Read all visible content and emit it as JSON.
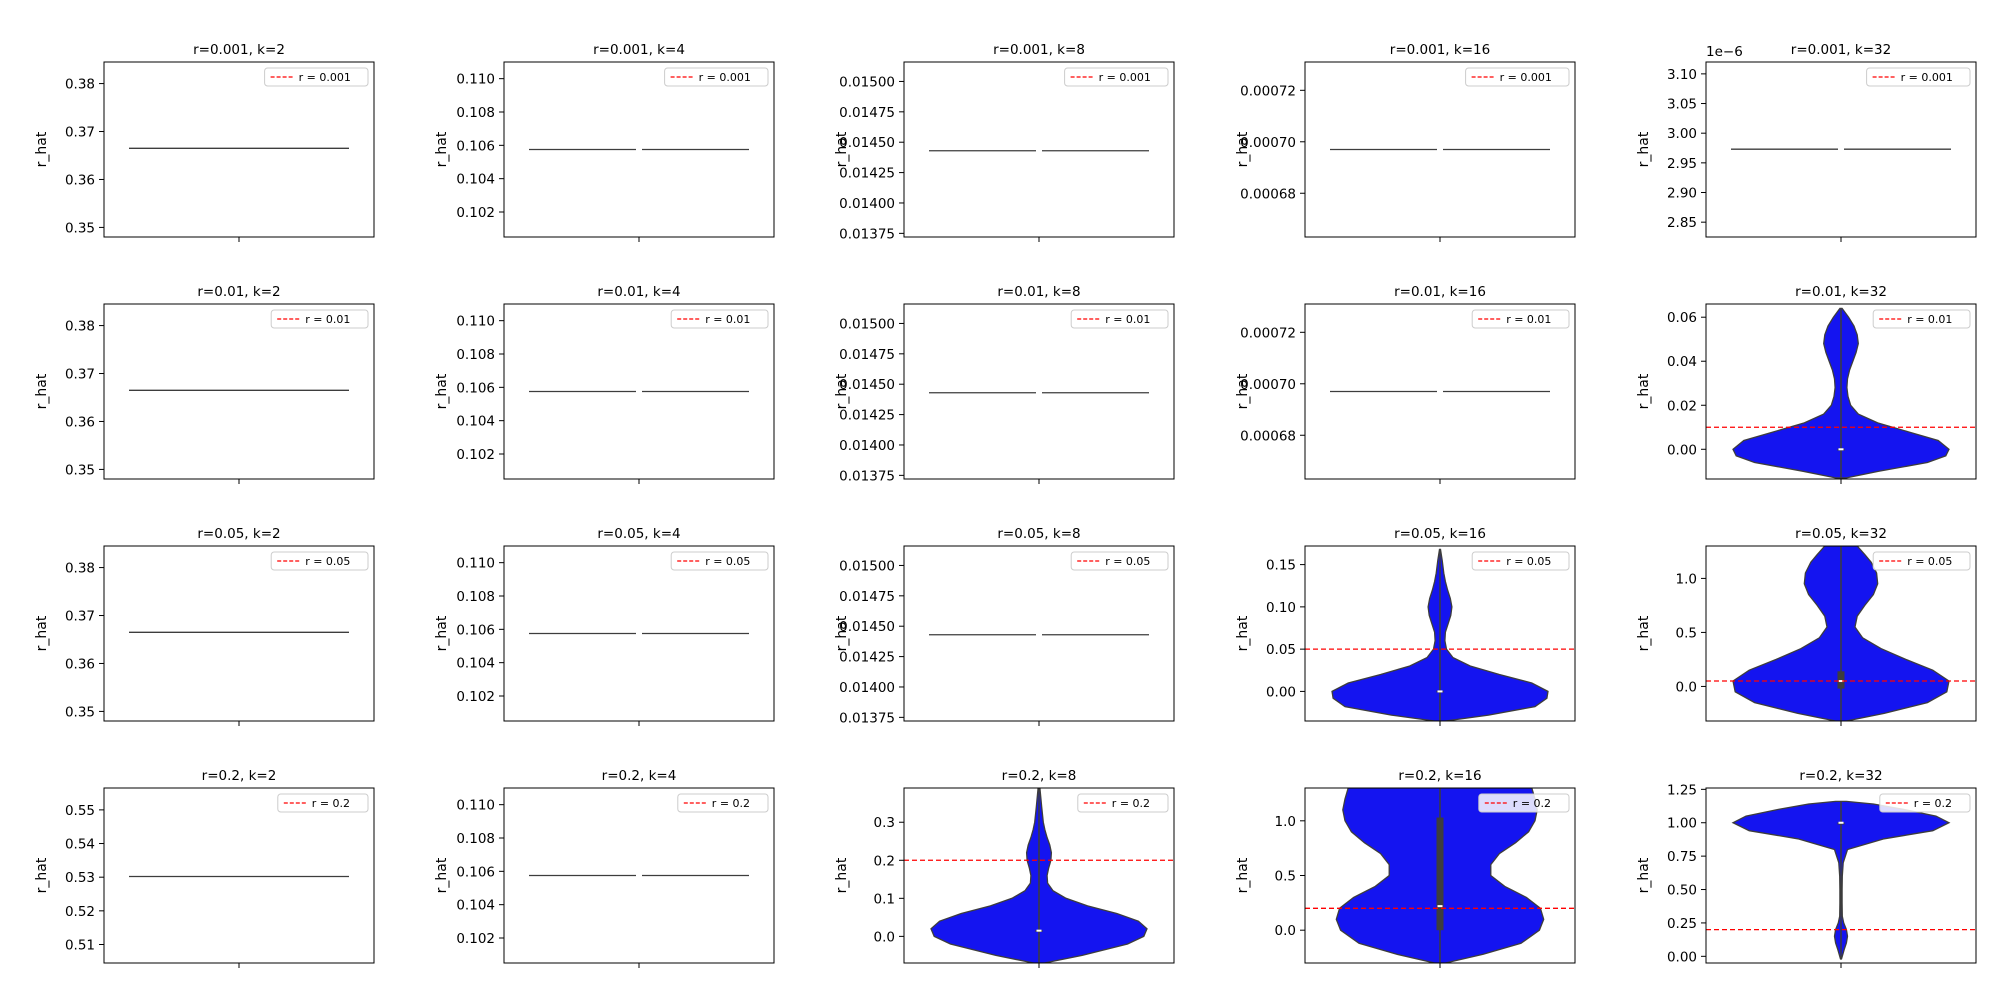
{
  "chart_data": [
    {
      "type": "violin",
      "title": "r=0.001, k=2",
      "ylabel": "r_hat",
      "legend": "r = 0.001",
      "legend_loc": "upper right",
      "ref_line": 0.001,
      "ylim": [
        0.348,
        0.3845
      ],
      "yticks": [
        "0.35",
        "0.36",
        "0.37",
        "0.38"
      ],
      "offset": "",
      "line_value": 0.3665,
      "line_style": "single"
    },
    {
      "type": "violin",
      "title": "r=0.001, k=4",
      "ylabel": "r_hat",
      "legend": "r = 0.001",
      "legend_loc": "upper right",
      "ref_line": 0.001,
      "ylim": [
        0.1005,
        0.111
      ],
      "yticks": [
        "0.102",
        "0.104",
        "0.106",
        "0.108",
        "0.110"
      ],
      "offset": "",
      "line_value": 0.10575,
      "line_style": "split"
    },
    {
      "type": "violin",
      "title": "r=0.001, k=8",
      "ylabel": "r_hat",
      "legend": "r = 0.001",
      "legend_loc": "upper right",
      "ref_line": 0.001,
      "ylim": [
        0.01372,
        0.01516
      ],
      "yticks": [
        "0.01375",
        "0.01400",
        "0.01425",
        "0.01450",
        "0.01475",
        "0.01500"
      ],
      "offset": "",
      "line_value": 0.01443,
      "line_style": "split"
    },
    {
      "type": "violin",
      "title": "r=0.001, k=16",
      "ylabel": "r_hat",
      "legend": "r = 0.001",
      "legend_loc": "upper right",
      "ref_line": 0.001,
      "ylim": [
        0.000663,
        0.000731
      ],
      "yticks": [
        "0.00068",
        "0.00070",
        "0.00072"
      ],
      "offset": "",
      "line_value": 0.000697,
      "line_style": "split"
    },
    {
      "type": "violin",
      "title": "r=0.001, k=32",
      "ylabel": "r_hat",
      "legend": "r = 0.001",
      "legend_loc": "upper right",
      "ref_line": 0.001,
      "ylim": [
        2.825,
        3.12
      ],
      "yticks": [
        "2.85",
        "2.90",
        "2.95",
        "3.00",
        "3.05",
        "3.10"
      ],
      "offset": "1e−6",
      "line_value": 2.973,
      "line_style": "split"
    },
    {
      "type": "violin",
      "title": "r=0.01, k=2",
      "ylabel": "r_hat",
      "legend": "r = 0.01",
      "legend_loc": "upper right",
      "ref_line": 0.01,
      "ylim": [
        0.348,
        0.3845
      ],
      "yticks": [
        "0.35",
        "0.36",
        "0.37",
        "0.38"
      ],
      "offset": "",
      "line_value": 0.3665,
      "line_style": "single"
    },
    {
      "type": "violin",
      "title": "r=0.01, k=4",
      "ylabel": "r_hat",
      "legend": "r = 0.01",
      "legend_loc": "upper right",
      "ref_line": 0.01,
      "ylim": [
        0.1005,
        0.111
      ],
      "yticks": [
        "0.102",
        "0.104",
        "0.106",
        "0.108",
        "0.110"
      ],
      "offset": "",
      "line_value": 0.10575,
      "line_style": "split"
    },
    {
      "type": "violin",
      "title": "r=0.01, k=8",
      "ylabel": "r_hat",
      "legend": "r = 0.01",
      "legend_loc": "upper right",
      "ref_line": 0.01,
      "ylim": [
        0.01372,
        0.01516
      ],
      "yticks": [
        "0.01375",
        "0.01400",
        "0.01425",
        "0.01450",
        "0.01475",
        "0.01500"
      ],
      "offset": "",
      "line_value": 0.01443,
      "line_style": "split"
    },
    {
      "type": "violin",
      "title": "r=0.01, k=16",
      "ylabel": "r_hat",
      "legend": "r = 0.01",
      "legend_loc": "upper right",
      "ref_line": 0.01,
      "ylim": [
        0.000663,
        0.000731
      ],
      "yticks": [
        "0.00068",
        "0.00070",
        "0.00072"
      ],
      "offset": "",
      "line_value": 0.000697,
      "line_style": "split"
    },
    {
      "type": "violin",
      "title": "r=0.01, k=32",
      "ylabel": "r_hat",
      "legend": "r = 0.01",
      "legend_loc": "upper right",
      "ref_line": 0.01,
      "ylim": [
        -0.0135,
        0.066
      ],
      "yticks": [
        "0.00",
        "0.02",
        "0.04",
        "0.06"
      ],
      "offset": "",
      "violin": {
        "min": -0.013,
        "max": 0.064,
        "profile": [
          [
            -0.013,
            0.05
          ],
          [
            -0.01,
            0.35
          ],
          [
            -0.006,
            0.8
          ],
          [
            -0.003,
            0.97
          ],
          [
            0.0,
            1.0
          ],
          [
            0.004,
            0.9
          ],
          [
            0.008,
            0.62
          ],
          [
            0.012,
            0.34
          ],
          [
            0.016,
            0.16
          ],
          [
            0.02,
            0.09
          ],
          [
            0.024,
            0.065
          ],
          [
            0.028,
            0.055
          ],
          [
            0.032,
            0.06
          ],
          [
            0.036,
            0.08
          ],
          [
            0.04,
            0.11
          ],
          [
            0.044,
            0.14
          ],
          [
            0.048,
            0.16
          ],
          [
            0.052,
            0.15
          ],
          [
            0.056,
            0.12
          ],
          [
            0.06,
            0.07
          ],
          [
            0.064,
            0.01
          ]
        ],
        "median": 0.0,
        "q1": -0.0003,
        "q3": 0.0003
      }
    },
    {
      "type": "violin",
      "title": "r=0.05, k=2",
      "ylabel": "r_hat",
      "legend": "r = 0.05",
      "legend_loc": "upper right",
      "ref_line": 0.05,
      "ylim": [
        0.348,
        0.3845
      ],
      "yticks": [
        "0.35",
        "0.36",
        "0.37",
        "0.38"
      ],
      "offset": "",
      "line_value": 0.3665,
      "line_style": "single"
    },
    {
      "type": "violin",
      "title": "r=0.05, k=4",
      "ylabel": "r_hat",
      "legend": "r = 0.05",
      "legend_loc": "upper right",
      "ref_line": 0.05,
      "ylim": [
        0.1005,
        0.111
      ],
      "yticks": [
        "0.102",
        "0.104",
        "0.106",
        "0.108",
        "0.110"
      ],
      "offset": "",
      "line_value": 0.10575,
      "line_style": "split"
    },
    {
      "type": "violin",
      "title": "r=0.05, k=8",
      "ylabel": "r_hat",
      "legend": "r = 0.05",
      "legend_loc": "upper right",
      "ref_line": 0.05,
      "ylim": [
        0.01372,
        0.01516
      ],
      "yticks": [
        "0.01375",
        "0.01400",
        "0.01425",
        "0.01450",
        "0.01475",
        "0.01500"
      ],
      "offset": "",
      "line_value": 0.01443,
      "line_style": "split"
    },
    {
      "type": "violin",
      "title": "r=0.05, k=16",
      "ylabel": "r_hat",
      "legend": "r = 0.05",
      "legend_loc": "upper right",
      "ref_line": 0.05,
      "ylim": [
        -0.035,
        0.172
      ],
      "yticks": [
        "0.00",
        "0.05",
        "0.10",
        "0.15"
      ],
      "offset": "",
      "violin": {
        "min": -0.035,
        "max": 0.168,
        "profile": [
          [
            -0.035,
            0.05
          ],
          [
            -0.028,
            0.45
          ],
          [
            -0.018,
            0.88
          ],
          [
            -0.008,
            0.99
          ],
          [
            0.0,
            1.0
          ],
          [
            0.01,
            0.85
          ],
          [
            0.02,
            0.55
          ],
          [
            0.03,
            0.28
          ],
          [
            0.04,
            0.12
          ],
          [
            0.05,
            0.06
          ],
          [
            0.06,
            0.045
          ],
          [
            0.07,
            0.05
          ],
          [
            0.08,
            0.075
          ],
          [
            0.09,
            0.1
          ],
          [
            0.1,
            0.11
          ],
          [
            0.11,
            0.095
          ],
          [
            0.12,
            0.07
          ],
          [
            0.13,
            0.05
          ],
          [
            0.14,
            0.035
          ],
          [
            0.155,
            0.02
          ],
          [
            0.168,
            0.005
          ]
        ],
        "median": 0.0,
        "q1": -0.001,
        "q3": 0.001
      }
    },
    {
      "type": "violin",
      "title": "r=0.05, k=32",
      "ylabel": "r_hat",
      "legend": "r = 0.05",
      "legend_loc": "upper right",
      "ref_line": 0.05,
      "ylim": [
        -0.32,
        1.3
      ],
      "yticks": [
        "0.0",
        "0.5",
        "1.0"
      ],
      "offset": "",
      "violin": {
        "min": -0.32,
        "max": 1.3,
        "profile": [
          [
            -0.32,
            0.05
          ],
          [
            -0.25,
            0.4
          ],
          [
            -0.15,
            0.8
          ],
          [
            -0.05,
            0.98
          ],
          [
            0.05,
            1.0
          ],
          [
            0.15,
            0.85
          ],
          [
            0.25,
            0.6
          ],
          [
            0.35,
            0.37
          ],
          [
            0.45,
            0.2
          ],
          [
            0.55,
            0.13
          ],
          [
            0.65,
            0.15
          ],
          [
            0.75,
            0.22
          ],
          [
            0.85,
            0.3
          ],
          [
            0.95,
            0.34
          ],
          [
            1.05,
            0.33
          ],
          [
            1.15,
            0.28
          ],
          [
            1.22,
            0.22
          ],
          [
            1.3,
            0.15
          ]
        ],
        "median": 0.05,
        "q1": -0.02,
        "q3": 0.14
      }
    },
    {
      "type": "violin",
      "title": "r=0.2, k=2",
      "ylabel": "r_hat",
      "legend": "r = 0.2",
      "legend_loc": "upper right",
      "ref_line": 0.2,
      "ylim": [
        0.5045,
        0.5565
      ],
      "yticks": [
        "0.51",
        "0.52",
        "0.53",
        "0.54",
        "0.55"
      ],
      "offset": "",
      "line_value": 0.5302,
      "line_style": "single"
    },
    {
      "type": "violin",
      "title": "r=0.2, k=4",
      "ylabel": "r_hat",
      "legend": "r = 0.2",
      "legend_loc": "upper right",
      "ref_line": 0.2,
      "ylim": [
        0.1005,
        0.111
      ],
      "yticks": [
        "0.102",
        "0.104",
        "0.106",
        "0.108",
        "0.110"
      ],
      "offset": "",
      "line_value": 0.10575,
      "line_style": "split"
    },
    {
      "type": "violin",
      "title": "r=0.2, k=8",
      "ylabel": "r_hat",
      "legend": "r = 0.2",
      "legend_loc": "upper right",
      "ref_line": 0.2,
      "ylim": [
        -0.07,
        0.39
      ],
      "yticks": [
        "0.0",
        "0.1",
        "0.2",
        "0.3"
      ],
      "offset": "",
      "violin": {
        "min": -0.07,
        "max": 0.39,
        "profile": [
          [
            -0.07,
            0.05
          ],
          [
            -0.05,
            0.4
          ],
          [
            -0.02,
            0.82
          ],
          [
            0.0,
            0.97
          ],
          [
            0.02,
            1.0
          ],
          [
            0.04,
            0.92
          ],
          [
            0.06,
            0.72
          ],
          [
            0.08,
            0.45
          ],
          [
            0.1,
            0.25
          ],
          [
            0.12,
            0.13
          ],
          [
            0.14,
            0.08
          ],
          [
            0.16,
            0.075
          ],
          [
            0.18,
            0.09
          ],
          [
            0.2,
            0.11
          ],
          [
            0.22,
            0.115
          ],
          [
            0.24,
            0.1
          ],
          [
            0.26,
            0.075
          ],
          [
            0.28,
            0.055
          ],
          [
            0.3,
            0.04
          ],
          [
            0.34,
            0.025
          ],
          [
            0.39,
            0.008
          ]
        ],
        "median": 0.015,
        "q1": 0.013,
        "q3": 0.017
      }
    },
    {
      "type": "violin",
      "title": "r=0.2, k=16",
      "ylabel": "r_hat",
      "legend": "r = 0.2",
      "legend_loc": "upper right",
      "ref_line": 0.2,
      "ylim": [
        -0.3,
        1.3
      ],
      "yticks": [
        "0.0",
        "0.5",
        "1.0"
      ],
      "offset": "",
      "violin": {
        "min": -0.3,
        "max": 1.3,
        "profile": [
          [
            -0.3,
            0.05
          ],
          [
            -0.22,
            0.4
          ],
          [
            -0.12,
            0.75
          ],
          [
            0.0,
            0.92
          ],
          [
            0.1,
            0.96
          ],
          [
            0.2,
            0.93
          ],
          [
            0.3,
            0.8
          ],
          [
            0.4,
            0.6
          ],
          [
            0.5,
            0.47
          ],
          [
            0.6,
            0.47
          ],
          [
            0.7,
            0.55
          ],
          [
            0.8,
            0.7
          ],
          [
            0.9,
            0.82
          ],
          [
            1.0,
            0.88
          ],
          [
            1.1,
            0.9
          ],
          [
            1.2,
            0.88
          ],
          [
            1.3,
            0.85
          ]
        ],
        "median": 0.22,
        "q1": 0.0,
        "q3": 1.03
      }
    },
    {
      "type": "violin",
      "title": "r=0.2, k=32",
      "ylabel": "r_hat",
      "legend": "r = 0.2",
      "legend_loc": "upper right",
      "ref_line": 0.2,
      "ylim": [
        -0.05,
        1.26
      ],
      "yticks": [
        "0.00",
        "0.25",
        "0.50",
        "0.75",
        "1.00",
        "1.25"
      ],
      "offset": "",
      "violin": {
        "min": -0.02,
        "max": 1.16,
        "profile": [
          [
            -0.02,
            0.005
          ],
          [
            0.05,
            0.03
          ],
          [
            0.1,
            0.05
          ],
          [
            0.15,
            0.06
          ],
          [
            0.2,
            0.05
          ],
          [
            0.25,
            0.025
          ],
          [
            0.3,
            0.012
          ],
          [
            0.4,
            0.01
          ],
          [
            0.5,
            0.01
          ],
          [
            0.6,
            0.012
          ],
          [
            0.7,
            0.02
          ],
          [
            0.8,
            0.06
          ],
          [
            0.88,
            0.4
          ],
          [
            0.94,
            0.85
          ],
          [
            1.0,
            1.0
          ],
          [
            1.05,
            0.88
          ],
          [
            1.1,
            0.58
          ],
          [
            1.14,
            0.3
          ],
          [
            1.16,
            0.05
          ]
        ],
        "median": 1.0,
        "q1": 0.998,
        "q3": 1.002
      }
    }
  ]
}
